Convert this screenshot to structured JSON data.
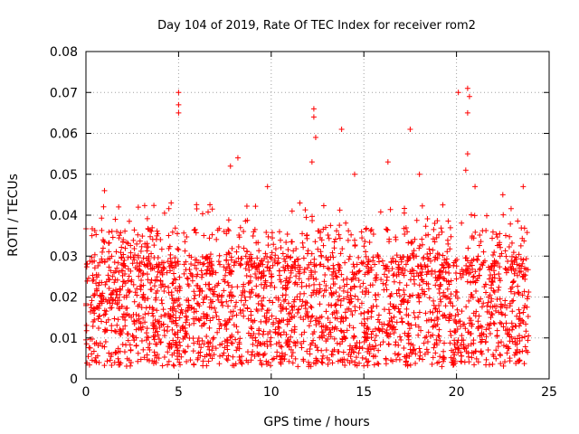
{
  "chart_data": {
    "type": "scatter",
    "title": "Day 104 of 2019, Rate Of TEC Index for receiver rom2",
    "xlabel": "GPS time / hours",
    "ylabel": "ROTI / TECUs",
    "xlim": [
      0,
      25
    ],
    "ylim": [
      0,
      0.08
    ],
    "xticks": [
      0,
      5,
      10,
      15,
      20,
      25
    ],
    "xtick_labels": [
      "0",
      "5",
      "10",
      "15",
      "20",
      "25"
    ],
    "yticks": [
      0,
      0.01,
      0.02,
      0.03,
      0.04,
      0.05,
      0.06,
      0.07,
      0.08
    ],
    "ytick_labels": [
      "0",
      "0.01",
      "0.02",
      "0.03",
      "0.04",
      "0.05",
      "0.06",
      "0.07",
      "0.08"
    ],
    "grid": true,
    "marker": "plus",
    "color": "#ff0000",
    "series": [
      {
        "x_start": 0,
        "x_end": 23.9,
        "typical_range": [
          0.003,
          0.03
        ],
        "notable_points": [
          {
            "x": 1.0,
            "y": 0.046
          },
          {
            "x": 4.6,
            "y": 0.043
          },
          {
            "x": 5.0,
            "y": 0.07
          },
          {
            "x": 5.0,
            "y": 0.067
          },
          {
            "x": 5.0,
            "y": 0.065
          },
          {
            "x": 7.8,
            "y": 0.052
          },
          {
            "x": 8.2,
            "y": 0.054
          },
          {
            "x": 9.8,
            "y": 0.047
          },
          {
            "x": 12.3,
            "y": 0.066
          },
          {
            "x": 12.3,
            "y": 0.064
          },
          {
            "x": 12.4,
            "y": 0.059
          },
          {
            "x": 12.2,
            "y": 0.053
          },
          {
            "x": 13.8,
            "y": 0.061
          },
          {
            "x": 14.5,
            "y": 0.05
          },
          {
            "x": 16.3,
            "y": 0.053
          },
          {
            "x": 17.5,
            "y": 0.061
          },
          {
            "x": 18.0,
            "y": 0.05
          },
          {
            "x": 20.1,
            "y": 0.07
          },
          {
            "x": 20.6,
            "y": 0.071
          },
          {
            "x": 20.7,
            "y": 0.069
          },
          {
            "x": 20.6,
            "y": 0.065
          },
          {
            "x": 20.6,
            "y": 0.055
          },
          {
            "x": 20.5,
            "y": 0.051
          },
          {
            "x": 21.0,
            "y": 0.047
          },
          {
            "x": 22.5,
            "y": 0.045
          },
          {
            "x": 23.6,
            "y": 0.047
          }
        ]
      }
    ]
  }
}
